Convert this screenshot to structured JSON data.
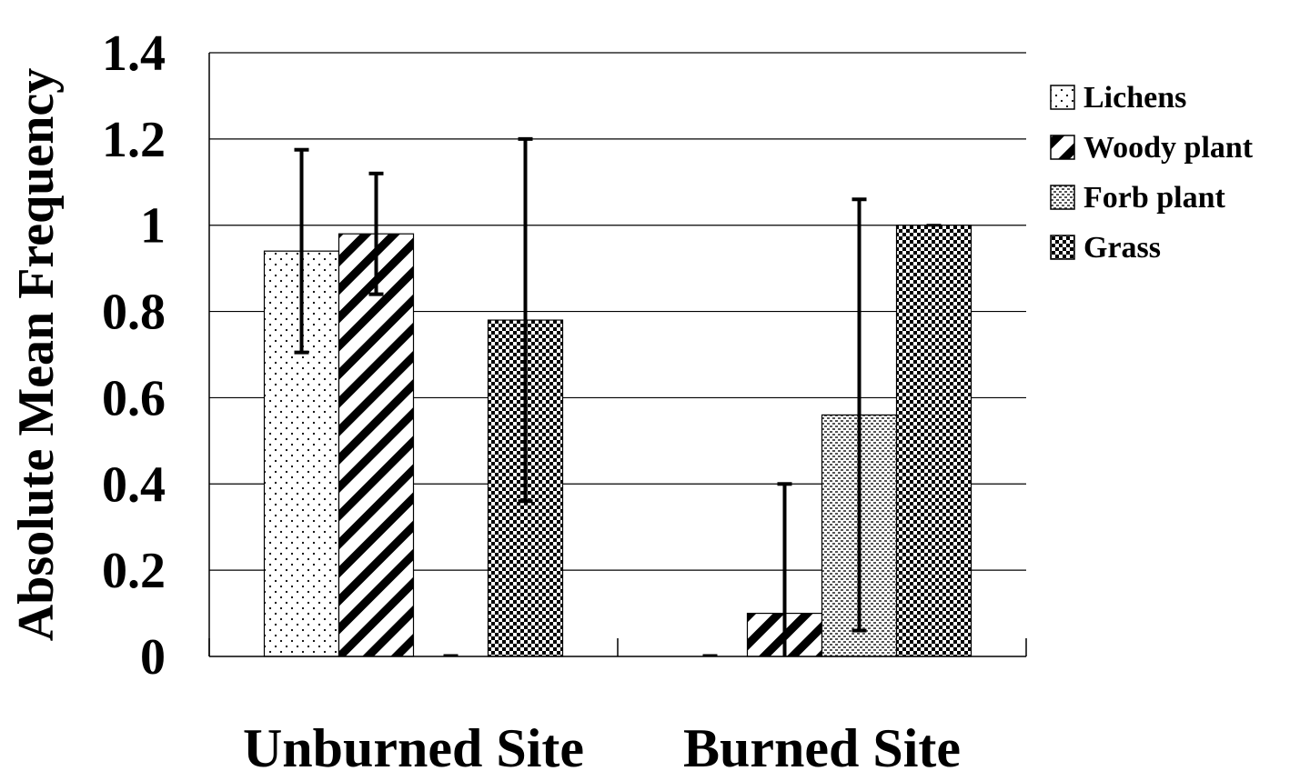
{
  "chart_data": {
    "type": "bar",
    "title": "",
    "xlabel": "",
    "ylabel": "Absolute Mean Frequency",
    "ylim": [
      0,
      1.4
    ],
    "yticks": [
      "0",
      "0.2",
      "0.4",
      "0.6",
      "0.8",
      "1",
      "1.2",
      "1.4"
    ],
    "grid": true,
    "legend_position": "right",
    "categories": [
      "Unburned Site",
      "Burned Site"
    ],
    "series": [
      {
        "name": "Lichens",
        "pattern": "dots",
        "values": [
          0.94,
          0.0
        ],
        "error": [
          0.235,
          0.0
        ]
      },
      {
        "name": "Woody plant",
        "pattern": "diagonal",
        "values": [
          0.98,
          0.1
        ],
        "error": [
          0.14,
          0.3
        ]
      },
      {
        "name": "Forb plant",
        "pattern": "fine-check",
        "values": [
          0.0,
          0.56
        ],
        "error": [
          0.0,
          0.5
        ]
      },
      {
        "name": "Grass",
        "pattern": "check",
        "values": [
          0.78,
          1.0
        ],
        "error": [
          0.42,
          0.0
        ]
      }
    ]
  }
}
